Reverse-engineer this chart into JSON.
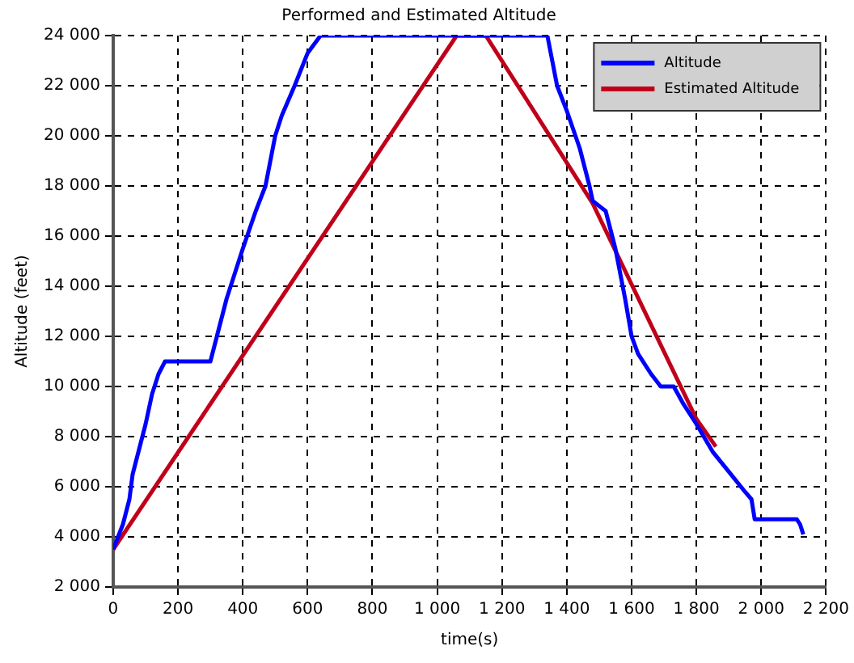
{
  "chart_data": {
    "type": "line",
    "title": "Performed and Estimated Altitude",
    "xlabel": "time(s)",
    "ylabel": "Altitude (feet)",
    "xlim": [
      0,
      2200
    ],
    "ylim": [
      2000,
      24000
    ],
    "xticks": [
      0,
      200,
      400,
      600,
      800,
      {
        "value": 1000,
        "label": "1 000"
      },
      {
        "value": 1200,
        "label": "1 200"
      },
      {
        "value": 1400,
        "label": "1 400"
      },
      {
        "value": 1600,
        "label": "1 600"
      },
      {
        "value": 1800,
        "label": "1 800"
      },
      {
        "value": 2000,
        "label": "2 000"
      },
      {
        "value": 2200,
        "label": "2 200"
      }
    ],
    "yticks": [
      {
        "value": 2000,
        "label": "2 000"
      },
      {
        "value": 4000,
        "label": "4 000"
      },
      {
        "value": 6000,
        "label": "6 000"
      },
      {
        "value": 8000,
        "label": "8 000"
      },
      {
        "value": 10000,
        "label": "10 000"
      },
      {
        "value": 12000,
        "label": "12 000"
      },
      {
        "value": 14000,
        "label": "14 000"
      },
      {
        "value": 16000,
        "label": "16 000"
      },
      {
        "value": 18000,
        "label": "18 000"
      },
      {
        "value": 20000,
        "label": "20 000"
      },
      {
        "value": 22000,
        "label": "22 000"
      },
      {
        "value": 24000,
        "label": "24 000"
      }
    ],
    "grid": true,
    "legend": "top right",
    "line_style": "solid",
    "marker": "none",
    "series": [
      {
        "name": "Altitude",
        "color": "#0000ff",
        "x": [
          0,
          30,
          50,
          60,
          80,
          100,
          120,
          140,
          160,
          300,
          320,
          350,
          400,
          440,
          470,
          500,
          520,
          560,
          600,
          640,
          1340,
          1370,
          1400,
          1440,
          1470,
          1480,
          1520,
          1550,
          1580,
          1600,
          1620,
          1660,
          1690,
          1730,
          1760,
          1800,
          1850,
          1900,
          1950,
          1970,
          1980,
          2110,
          2120,
          2130
        ],
        "values": [
          3500,
          4500,
          5500,
          6500,
          7500,
          8500,
          9700,
          10500,
          11000,
          11000,
          12000,
          13500,
          15500,
          17000,
          18000,
          20000,
          20800,
          22000,
          23300,
          24000,
          24000,
          22000,
          21000,
          19500,
          18000,
          17400,
          17000,
          15500,
          13500,
          12000,
          11300,
          10500,
          10000,
          10000,
          9300,
          8500,
          7400,
          6600,
          5800,
          5500,
          4700,
          4700,
          4500,
          4100
        ]
      },
      {
        "name": "Estimated Altitude",
        "color": "#c0001a",
        "x": [
          0,
          1060,
          1150,
          1480,
          1800,
          1860
        ],
        "values": [
          3500,
          24000,
          24000,
          17300,
          8700,
          7600
        ]
      }
    ]
  }
}
